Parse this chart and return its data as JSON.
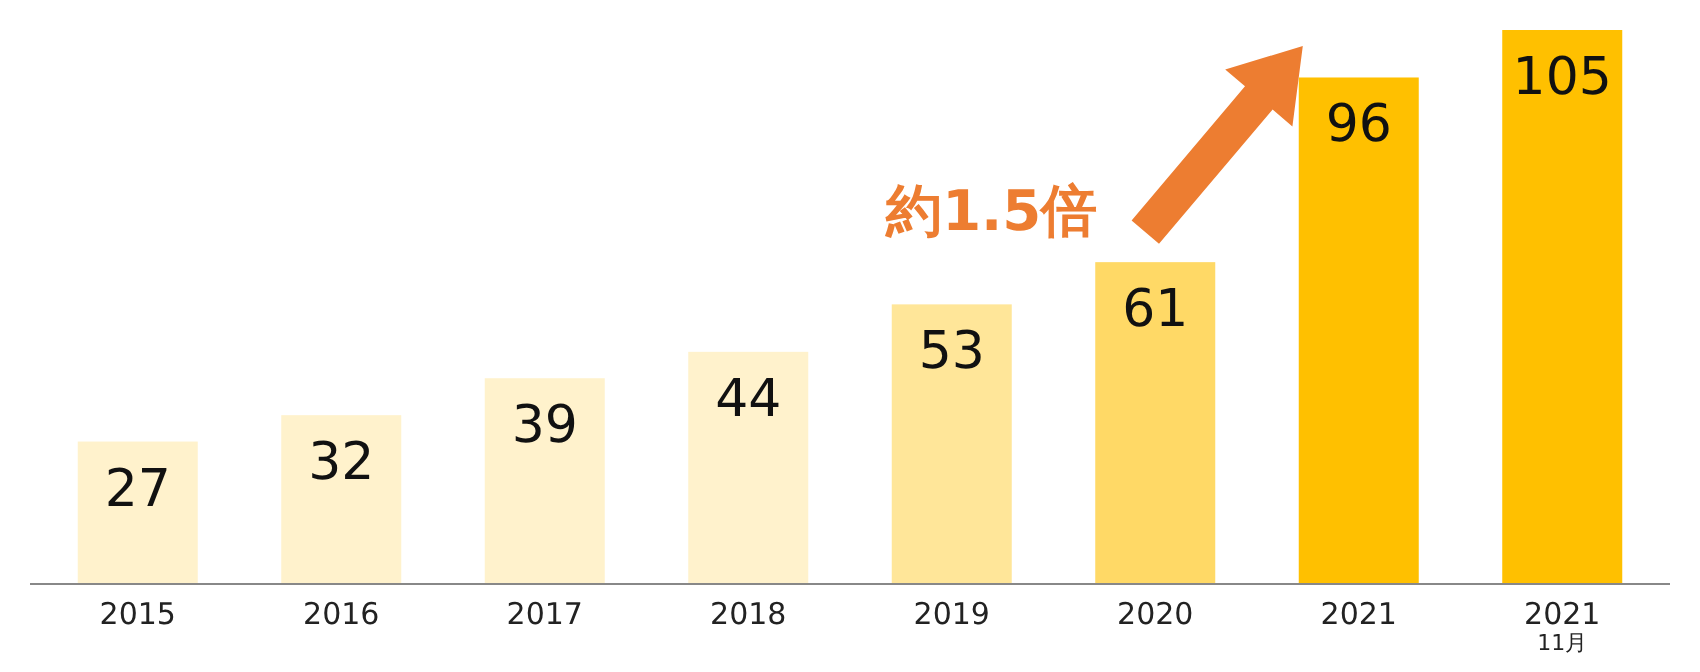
{
  "chart_data": {
    "type": "bar",
    "categories": [
      "2015",
      "2016",
      "2017",
      "2018",
      "2019",
      "2020",
      "2021",
      "2021\n11月"
    ],
    "values": [
      27,
      32,
      39,
      44,
      53,
      61,
      96,
      105
    ],
    "colors": [
      "#fff2cc",
      "#fff2cc",
      "#fff2cc",
      "#fff2cc",
      "#ffe699",
      "#ffd966",
      "#ffc000",
      "#ffc000"
    ],
    "data_labels": true,
    "annotations": [
      "約1.5倍"
    ]
  }
}
